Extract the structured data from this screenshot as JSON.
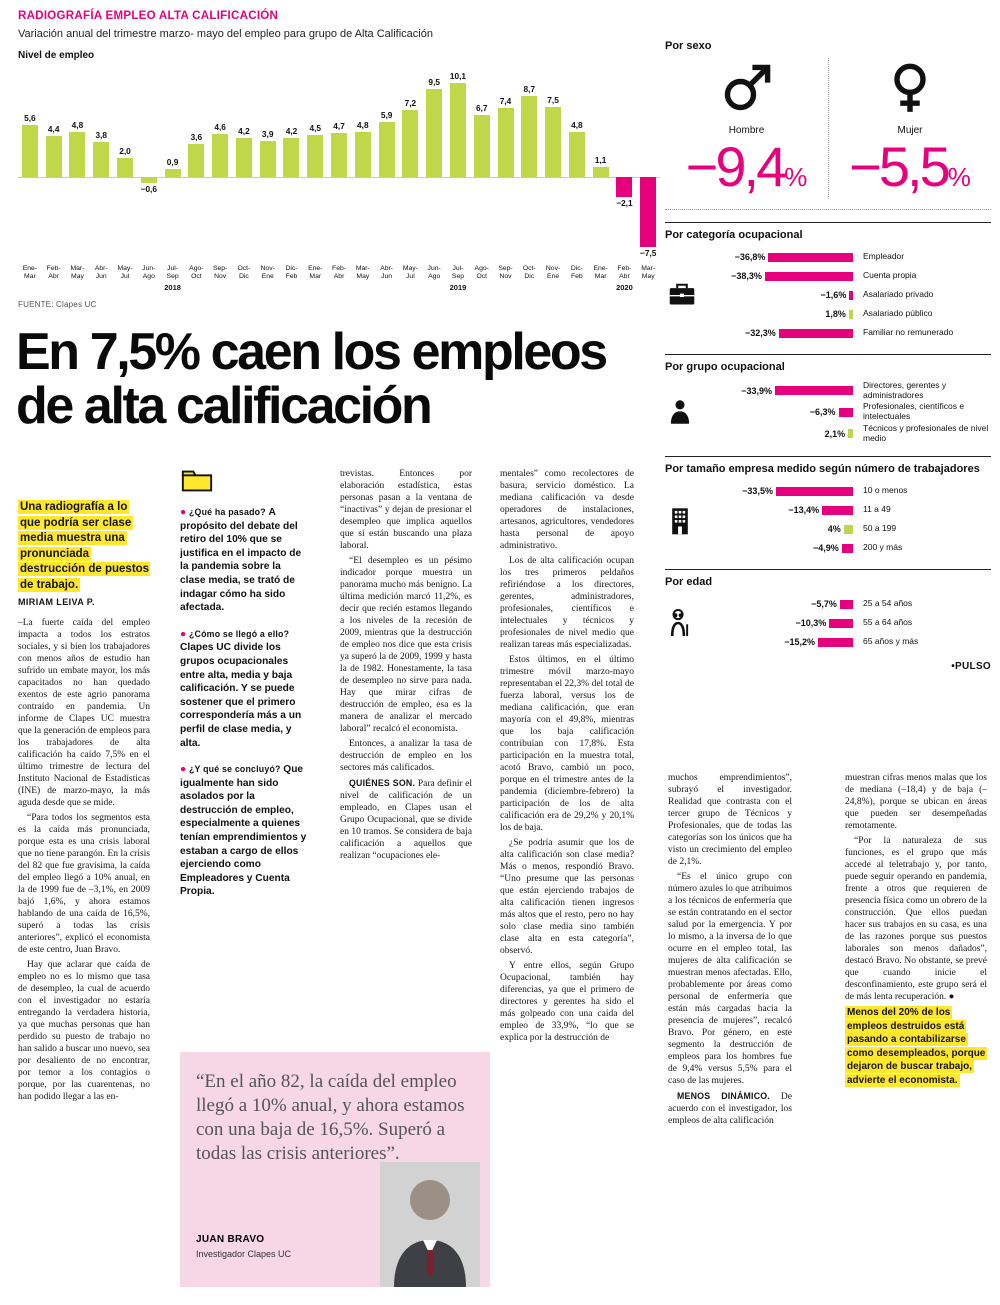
{
  "kicker": "RADIOGRAFÍA EMPLEO ALTA CALIFICACIÓN",
  "chart": {
    "subtitle": "Variación anual del trimestre marzo- mayo del empleo para grupo de Alta Calificación",
    "axis_label": "Nivel de empleo",
    "source": "FUENTE: Clapes UC"
  },
  "colors": {
    "magenta": "#e6007e",
    "green": "#bfd748",
    "yellow": "#ffe72e",
    "quote_bg": "#f7d7e5"
  },
  "chart_data": [
    {
      "type": "bar",
      "title": "Variación anual del trimestre marzo-mayo del empleo para grupo de Alta Calificación",
      "ylabel": "Nivel de empleo",
      "categories": [
        "Ene-Mar",
        "Feb-Abr",
        "Mar-May",
        "Abr-Jun",
        "May-Jul",
        "Jun-Ago",
        "Jul-Sep",
        "Ago-Oct",
        "Sep-Nov",
        "Oct-Dic",
        "Nov-Ene",
        "Dic-Feb",
        "Ene-Mar",
        "Feb-Abr",
        "Mar-May",
        "Abr-Jun",
        "May-Jul",
        "Jun-Ago",
        "Jul-Sep",
        "Ago-Oct",
        "Sep-Nov",
        "Oct-Dic",
        "Nov-Ene",
        "Dic-Feb",
        "Ene-Mar",
        "Feb-Abr",
        "Mar-May"
      ],
      "values": [
        5.6,
        4.4,
        4.8,
        3.8,
        2.0,
        -0.6,
        0.9,
        3.6,
        4.6,
        4.2,
        3.9,
        4.2,
        4.5,
        4.7,
        4.8,
        5.9,
        7.2,
        9.5,
        10.1,
        6.7,
        7.4,
        8.7,
        7.5,
        4.8,
        1.1,
        -2.1,
        -7.5
      ],
      "value_labels": [
        "5,6",
        "4,4",
        "4,8",
        "3,8",
        "2,0",
        "−0,6",
        "0,9",
        "3,6",
        "4,6",
        "4,2",
        "3,9",
        "4,2",
        "4,5",
        "4,7",
        "4,8",
        "5,9",
        "7,2",
        "9,5",
        "10,1",
        "6,7",
        "7,4",
        "8,7",
        "7,5",
        "4,8",
        "1,1",
        "−2,1",
        "−7,5"
      ],
      "year_markers": {
        "6": "2018",
        "18": "2019",
        "25": "2020"
      },
      "pink_indices": [
        25,
        26
      ],
      "ylim": [
        -8,
        11
      ],
      "grid": false
    },
    {
      "type": "bar",
      "orientation": "horizontal",
      "title": "Por sexo",
      "categories": [
        "Hombre",
        "Mujer"
      ],
      "values": [
        -9.4,
        -5.5
      ],
      "value_labels": [
        "−9,4%",
        "−5,5%"
      ],
      "icons": [
        "male-icon",
        "female-icon"
      ]
    },
    {
      "type": "bar",
      "orientation": "horizontal",
      "title": "Por categoría ocupacional",
      "icon": "briefcase-icon",
      "categories": [
        "Empleador",
        "Cuenta propia",
        "Asalariado privado",
        "Asalariado público",
        "Familiar no remunerado"
      ],
      "values": [
        -36.8,
        -38.3,
        -1.6,
        1.8,
        -32.3
      ],
      "value_labels": [
        "−36,8%",
        "−38,3%",
        "−1,6%",
        "1,8%",
        "−32,3%"
      ]
    },
    {
      "type": "bar",
      "orientation": "horizontal",
      "title": "Por grupo ocupacional",
      "icon": "person-icon",
      "categories": [
        "Directores, gerentes y administradores",
        "Profesionales, científicos e intelectuales",
        "Técnicos y profesionales de nivel medio"
      ],
      "values": [
        -33.9,
        -6.3,
        2.1
      ],
      "value_labels": [
        "−33,9%",
        "−6,3%",
        "2,1%"
      ]
    },
    {
      "type": "bar",
      "orientation": "horizontal",
      "title": "Por tamaño empresa medido según número de trabajadores",
      "icon": "building-icon",
      "categories": [
        "10 o menos",
        "11 a 49",
        "50 a 199",
        "200 y más"
      ],
      "values": [
        -33.5,
        -13.4,
        4,
        -4.9
      ],
      "value_labels": [
        "−33,5%",
        "−13,4%",
        "4%",
        "−4,9%"
      ]
    },
    {
      "type": "bar",
      "orientation": "horizontal",
      "title": "Por edad",
      "icon": "elder-icon",
      "categories": [
        "25 a 54 años",
        "55 a 64 años",
        "65 años y más"
      ],
      "values": [
        -5.7,
        -10.3,
        -15.2
      ],
      "value_labels": [
        "−5,7%",
        "−10,3%",
        "−15,2%"
      ]
    }
  ],
  "headline": "En 7,5% caen los empleos de alta calificación",
  "lead": "Una radiografía a lo que podría ser clase media muestra una pronunciada destrucción de puestos de trabajo.",
  "byline": "MIRIAM LEIVA P.",
  "article": {
    "col1": [
      {
        "text": "–La fuerte caída del empleo impacta a todos los estratos sociales, y si bien los trabajadores con menos años de estudio han sufrido un embate mayor, los más capacitados no han quedado exentos de este agrio panorama contraído en pandemia. Un informe de Clapes UC muestra que la generación de empleos para los trabajadores de alta calificación ha caído 7,5% en el último trimestre de lectura del Instituto Nacional de Estadísticas (INE) de marzo-mayo, la más aguda desde que se mide."
      },
      {
        "text": "“Para todos los segmentos esta es la caída más pronunciada, porque esta es una crisis laboral que no tiene parangón. En la crisis del 82 que fue gravísima, la caída del empleo llegó a 10% anual, en la de 1999 fue de –3,1%, en 2009 bajó 1,6%, y ahora estamos hablando de una caída de 16,5%, superó a todas las crisis anteriores”, explicó el economista de este centro, Juan Bravo."
      },
      {
        "text": "Hay que aclarar que caída de empleo no es lo mismo que tasa de desempleo, la cual de acuerdo con el investigador no estaría entregando la verdadera historia, ya que muchas personas que han perdido su puesto de trabajo no han salido a buscar uno nuevo, sea por desaliento de no encontrar, por temor a los contagios o porque, por las cuarentenas, no han podido llegar a las en-"
      }
    ],
    "col2": [
      {
        "bullet": true,
        "lead": "¿Qué ha pasado?",
        "text": "A propósito del debate del retiro del 10% que se justifica en el impacto de la pandemia sobre la clase media, se trató de indagar cómo ha sido afectada."
      },
      {
        "bullet": true,
        "lead": "¿Cómo se llegó a ello?",
        "text": "Clapes UC divide los grupos ocupacionales entre alta, media y baja calificación. Y se puede sostener que el primero correspondería más a un perfil de clase media, y alta."
      },
      {
        "bullet": true,
        "lead": "¿Y qué se concluyó?",
        "text": "Que igualmente han sido asolados por la destrucción de empleo, especialmente a quienes tenían emprendimientos y estaban a cargo de ellos ejerciendo como Empleadores y Cuenta Propia."
      }
    ],
    "col3": [
      {
        "text": "trevistas. Entonces por elaboración estadística, estas personas pasan a la ventana de “inactivas” y dejan de presionar el desempleo que implica aquellos que sí están buscando una plaza laboral."
      },
      {
        "text": "“El desempleo es un pésimo indicador porque muestra un panorama mucho más benigno. La última medición marcó 11,2%, es decir que recién estamos llegando a los niveles de la recesión de 2009, mientras que la destrucción de empleo nos dice que esta crisis ya superó la de 2009, 1999 y hasta la de 1982. Honestamente, la tasa de desempleo no sirve para nada. Hay que mirar cifras de destrucción de empleo, esa es la manera de analizar el mercado laboral” recalcó el economista."
      },
      {
        "text": "Entonces, a analizar la tasa de destrucción de empleo en los sectores más calificados."
      },
      {
        "lead": "QUIÉNES SON.",
        "text": "Para definir el nivel de calificación de un empleado, en Clapes usan el Grupo Ocupacional, que se divide en 10 tramos. Se considera de baja calificación a aquellos que realizan “ocupaciones ele-"
      }
    ],
    "col4": [
      {
        "text": "mentales” como recolectores de basura, servicio doméstico. La mediana calificación va desde operadores de instalaciones, artesanos, agricultores, vendedores hasta personal de apoyo administrativo."
      },
      {
        "text": "Los de alta calificación ocupan los tres primeros peldaños refiriéndose a los directores, gerentes, administradores, profesionales, científicos e intelectuales y técnicos y profesionales de nivel medio que realizan tareas más especializadas."
      },
      {
        "text": "Estos últimos, en el último trimestre móvil marzo-mayo representaban el 22,3% del total de fuerza laboral, versus los de mediana calificación, que eran mayoría con el 49,8%, mientras que los baja calificación contribuían con 17,8%. Esta participación en la muestra total, acotó Bravo, cambió un poco, porque en el trimestre antes de la pandemia (diciembre-febrero) la participación de los de alta calificación era de 29,2% y 20,1% los de baja."
      },
      {
        "text": "¿Se podría asumir que los de alta calificación son clase media? Más o menos, respondió Bravo. “Uno presume que las personas que están ejerciendo trabajos de alta calificación tienen ingresos más altos que el resto, pero no hay solo clase media sino también clase alta en esta categoría”, observó."
      },
      {
        "text": "Y entre ellos, según Grupo Ocupacional, también hay diferencias, ya que el primero de directores y gerentes ha sido el más golpeado con una caída del empleo de 33,9%, “lo que se explica por la destrucción de"
      }
    ],
    "col5": [
      {
        "text": "muchos emprendimientos”, subrayó el investigador. Realidad que contrasta con el tercer grupo de Técnicos y Profesionales, que de todas las categorías son los únicos que ha visto un crecimiento del empleo de 2,1%."
      },
      {
        "text": "“Es el único grupo con número azules lo que atribuimos a los técnicos de enfermería que se están contratando en el sector salud por la emergencia. Y por lo mismo, a la inversa de lo que ocurre en el empleo total, las mujeres de alta calificación se muestran menos afectadas. Ello, probablemente por áreas como personal de enfermería que están más cargadas hacia la presencia de mujeres”, recalcó Bravo. Por género, en este segmento la destrucción de empleos para los hombres fue de 9,4% versus 5,5% para el caso de las mujeres."
      },
      {
        "lead": "MENOS DINÁMICO.",
        "text": "De acuerdo con el investigador, los empleos de alta calificación"
      }
    ],
    "col6": [
      {
        "text": "muestran cifras menos malas que los de mediana (–18,4) y de baja (–24,8%), porque se ubican en áreas que pueden ser desempeñadas remotamente."
      },
      {
        "text": "“Por la naturaleza de sus funciones, es el grupo que más accede al teletrabajo y, por tanto, puede seguir operando en pandemia, frente a otros que requieren de presencia física como un obrero de la construcción. Que ellos puedan hacer sus trabajos en su casa, es una de las razones porque sus puestos laborales son menos dañados”, destacó Bravo. No obstante, se prevé que cuando inicie el desconfinamiento, este grupo será el de más lenta recuperación. ●"
      },
      {
        "highlight": true,
        "text": "Menos del 20% de los empleos destruidos está pasando a contabilizarse como desempleados, porque dejaron de buscar trabajo, advierte el economista."
      }
    ]
  },
  "quote": {
    "text": "“En el año 82, la caída del empleo llegó a 10% anual, y ahora estamos con una baja de 16,5%. Superó a todas las crisis anteriores”.",
    "author": "JUAN BRAVO",
    "role": "Investigador Clapes UC"
  },
  "sidebar": {
    "sexo_title": "Por sexo",
    "brand": "•PULSO"
  }
}
